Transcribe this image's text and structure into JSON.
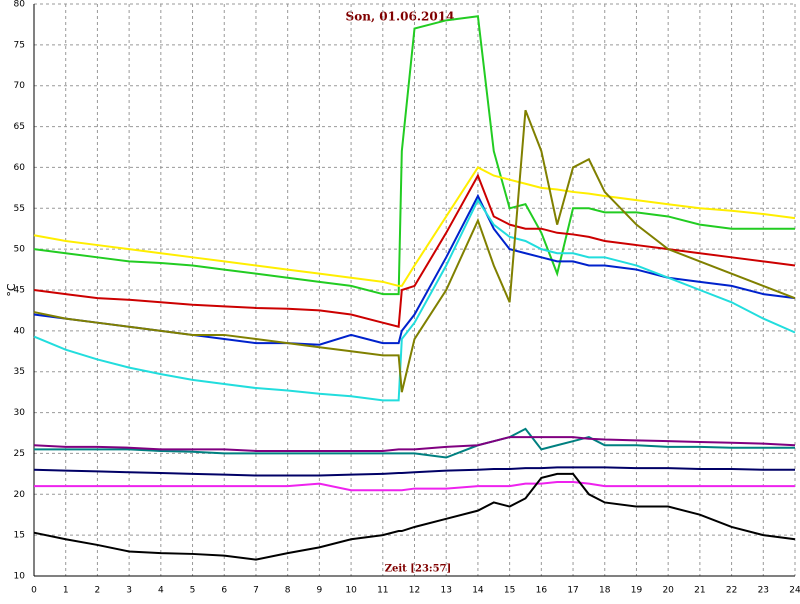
{
  "chart_data": {
    "type": "line",
    "title": "Son, 01.06.2014",
    "x_label": "Zeit [23:57]",
    "y_label": "°C",
    "x": [
      0,
      1,
      2,
      3,
      4,
      5,
      6,
      7,
      8,
      9,
      10,
      11,
      11.5,
      11.6,
      12,
      13,
      14,
      14.5,
      15,
      15.5,
      16,
      16.5,
      17,
      17.5,
      18,
      19,
      20,
      21,
      22,
      23,
      24
    ],
    "series": [
      {
        "color": "#22cc22",
        "values": [
          50,
          49.5,
          49,
          48.5,
          48.3,
          48,
          47.5,
          47,
          46.5,
          46,
          45.5,
          44.5,
          44.5,
          62,
          77,
          78,
          78.5,
          62,
          55,
          55.5,
          52,
          47,
          55,
          55,
          54.5,
          54.5,
          54,
          53,
          52.5,
          52.5,
          52.5
        ]
      },
      {
        "color": "#ffee00",
        "values": [
          51.7,
          51,
          50.5,
          50,
          49.5,
          49,
          48.5,
          48,
          47.5,
          47,
          46.5,
          46,
          45.5,
          45.5,
          48,
          54,
          60,
          59,
          58.5,
          58,
          57.5,
          57.3,
          57,
          56.8,
          56.5,
          56,
          55.5,
          55,
          54.7,
          54.3,
          53.8
        ]
      },
      {
        "color": "#cc0000",
        "values": [
          45,
          44.5,
          44,
          43.8,
          43.5,
          43.2,
          43,
          42.8,
          42.7,
          42.5,
          42,
          41,
          40.5,
          45,
          45.5,
          52,
          59,
          54,
          53,
          52.5,
          52.5,
          52,
          51.8,
          51.5,
          51,
          50.5,
          50,
          49.5,
          49,
          48.5,
          48
        ]
      },
      {
        "color": "#0022cc",
        "values": [
          42,
          41.5,
          41,
          40.5,
          40,
          39.5,
          39,
          38.5,
          38.5,
          38.3,
          39.5,
          38.5,
          38.5,
          40,
          42,
          49,
          56.5,
          52.5,
          50,
          49.5,
          49,
          48.5,
          48.5,
          48,
          48,
          47.5,
          46.5,
          46,
          45.5,
          44.5,
          44
        ]
      },
      {
        "color": "#22dddd",
        "values": [
          39.3,
          37.7,
          36.5,
          35.5,
          34.7,
          34,
          33.5,
          33,
          32.7,
          32.3,
          32,
          31.5,
          31.5,
          39,
          41,
          48,
          56,
          53,
          51.5,
          51,
          50,
          49.5,
          49.5,
          49,
          49,
          48,
          46.5,
          45,
          43.5,
          41.5,
          39.8
        ]
      },
      {
        "color": "#808000",
        "values": [
          42.3,
          41.5,
          41,
          40.5,
          40,
          39.5,
          39.5,
          39,
          38.5,
          38,
          37.5,
          37,
          37,
          32.5,
          39,
          45,
          53.5,
          48,
          43.5,
          67,
          62,
          53,
          60,
          61,
          57,
          53,
          50,
          48.5,
          47,
          45.5,
          44
        ]
      },
      {
        "color": "#008080",
        "values": [
          25.5,
          25.5,
          25.5,
          25.5,
          25.3,
          25.2,
          25,
          25,
          25,
          25,
          25,
          25,
          25,
          25,
          25,
          24.5,
          26,
          26.5,
          27,
          28,
          25.5,
          26,
          26.5,
          27,
          26,
          26,
          25.8,
          25.8,
          25.7,
          25.7,
          25.7
        ]
      },
      {
        "color": "#800080",
        "values": [
          26,
          25.8,
          25.8,
          25.7,
          25.5,
          25.5,
          25.5,
          25.3,
          25.3,
          25.3,
          25.3,
          25.3,
          25.5,
          25.5,
          25.5,
          25.8,
          26,
          26.5,
          27,
          27,
          27,
          27,
          27,
          26.8,
          26.7,
          26.6,
          26.5,
          26.4,
          26.3,
          26.2,
          26
        ]
      },
      {
        "color": "#000066",
        "values": [
          23,
          22.9,
          22.8,
          22.7,
          22.6,
          22.5,
          22.4,
          22.3,
          22.3,
          22.3,
          22.4,
          22.5,
          22.6,
          22.6,
          22.7,
          22.9,
          23,
          23.1,
          23.1,
          23.2,
          23.2,
          23.3,
          23.3,
          23.3,
          23.3,
          23.2,
          23.2,
          23.1,
          23.1,
          23,
          23
        ]
      },
      {
        "color": "#ee22ee",
        "values": [
          21,
          21,
          21,
          21,
          21,
          21,
          21,
          21,
          21,
          21.3,
          20.5,
          20.5,
          20.5,
          20.5,
          20.7,
          20.7,
          21,
          21,
          21,
          21.3,
          21.3,
          21.5,
          21.5,
          21.3,
          21,
          21,
          21,
          21,
          21,
          21,
          21
        ]
      },
      {
        "color": "#000000",
        "values": [
          15.3,
          14.5,
          13.8,
          13,
          12.8,
          12.7,
          12.5,
          12,
          12.8,
          13.5,
          14.5,
          15,
          15.5,
          15.5,
          16,
          17,
          18,
          19,
          18.5,
          19.5,
          22,
          22.5,
          22.5,
          20,
          19,
          18.5,
          18.5,
          17.5,
          16,
          15,
          14.5
        ]
      }
    ],
    "xlim": [
      0,
      24
    ],
    "xticks": [
      0,
      1,
      2,
      3,
      4,
      5,
      6,
      7,
      8,
      9,
      10,
      11,
      12,
      13,
      14,
      15,
      16,
      17,
      18,
      19,
      20,
      21,
      22,
      23,
      24
    ],
    "ylim": [
      10,
      80
    ],
    "yticks": [
      10,
      15,
      20,
      25,
      30,
      35,
      40,
      45,
      50,
      55,
      60,
      65,
      70,
      75,
      80
    ],
    "grid": true
  }
}
